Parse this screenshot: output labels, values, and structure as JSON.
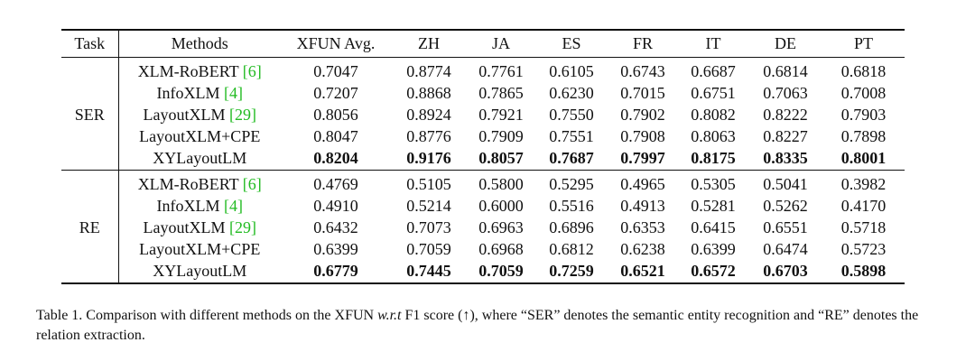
{
  "table": {
    "header": [
      "Task",
      "Methods",
      "XFUN Avg.",
      "ZH",
      "JA",
      "ES",
      "FR",
      "IT",
      "DE",
      "PT"
    ],
    "groups": [
      {
        "task": "SER",
        "rows": [
          {
            "method": "XLM-RoBERT",
            "cite": "[6]",
            "values": [
              "0.7047",
              "0.8774",
              "0.7761",
              "0.6105",
              "0.6743",
              "0.6687",
              "0.6814",
              "0.6818"
            ]
          },
          {
            "method": "InfoXLM",
            "cite": "[4]",
            "values": [
              "0.7207",
              "0.8868",
              "0.7865",
              "0.6230",
              "0.7015",
              "0.6751",
              "0.7063",
              "0.7008"
            ]
          },
          {
            "method": "LayoutXLM",
            "cite": "[29]",
            "values": [
              "0.8056",
              "0.8924",
              "0.7921",
              "0.7550",
              "0.7902",
              "0.8082",
              "0.8222",
              "0.7903"
            ]
          },
          {
            "method": "LayoutXLM+CPE",
            "values": [
              "0.8047",
              "0.8776",
              "0.7909",
              "0.7551",
              "0.7908",
              "0.8063",
              "0.8227",
              "0.7898"
            ]
          },
          {
            "method": "XYLayoutLM",
            "bold": true,
            "values": [
              "0.8204",
              "0.9176",
              "0.8057",
              "0.7687",
              "0.7997",
              "0.8175",
              "0.8335",
              "0.8001"
            ]
          }
        ]
      },
      {
        "task": "RE",
        "rows": [
          {
            "method": "XLM-RoBERT",
            "cite": "[6]",
            "values": [
              "0.4769",
              "0.5105",
              "0.5800",
              "0.5295",
              "0.4965",
              "0.5305",
              "0.5041",
              "0.3982"
            ]
          },
          {
            "method": "InfoXLM",
            "cite": "[4]",
            "values": [
              "0.4910",
              "0.5214",
              "0.6000",
              "0.5516",
              "0.4913",
              "0.5281",
              "0.5262",
              "0.4170"
            ]
          },
          {
            "method": "LayoutXLM",
            "cite": "[29]",
            "values": [
              "0.6432",
              "0.7073",
              "0.6963",
              "0.6896",
              "0.6353",
              "0.6415",
              "0.6551",
              "0.5718"
            ]
          },
          {
            "method": "LayoutXLM+CPE",
            "values": [
              "0.6399",
              "0.7059",
              "0.6968",
              "0.6812",
              "0.6238",
              "0.6399",
              "0.6474",
              "0.5723"
            ]
          },
          {
            "method": "XYLayoutLM",
            "bold": true,
            "values": [
              "0.6779",
              "0.7445",
              "0.7059",
              "0.7259",
              "0.6521",
              "0.6572",
              "0.6703",
              "0.5898"
            ]
          }
        ]
      }
    ]
  },
  "caption": [
    {
      "text": "Table 1.  Comparison with different methods on the XFUN "
    },
    {
      "text": "w.r.t",
      "italic": true
    },
    {
      "text": " F1 score (↑), where “SER” denotes the semantic entity recognition and “RE” denotes the relation extraction."
    }
  ]
}
